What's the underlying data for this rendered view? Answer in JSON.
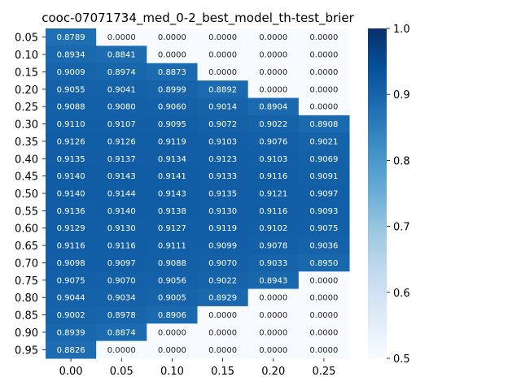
{
  "chart_data": {
    "type": "heatmap",
    "title": "cooc-07071734_med_0-2_best_model_th-test_brier",
    "xlabel": "",
    "ylabel": "",
    "x_categories": [
      "0.00",
      "0.05",
      "0.10",
      "0.15",
      "0.20",
      "0.25"
    ],
    "y_categories": [
      "0.05",
      "0.10",
      "0.15",
      "0.20",
      "0.25",
      "0.30",
      "0.35",
      "0.40",
      "0.45",
      "0.50",
      "0.55",
      "0.60",
      "0.65",
      "0.70",
      "0.75",
      "0.80",
      "0.85",
      "0.90",
      "0.95"
    ],
    "values": [
      [
        "0.8789",
        "0.0000",
        "0.0000",
        "0.0000",
        "0.0000",
        "0.0000"
      ],
      [
        "0.8934",
        "0.8841",
        "0.0000",
        "0.0000",
        "0.0000",
        "0.0000"
      ],
      [
        "0.9009",
        "0.8974",
        "0.8873",
        "0.0000",
        "0.0000",
        "0.0000"
      ],
      [
        "0.9055",
        "0.9041",
        "0.8999",
        "0.8892",
        "0.0000",
        "0.0000"
      ],
      [
        "0.9088",
        "0.9080",
        "0.9060",
        "0.9014",
        "0.8904",
        "0.0000"
      ],
      [
        "0.9110",
        "0.9107",
        "0.9095",
        "0.9072",
        "0.9022",
        "0.8908"
      ],
      [
        "0.9126",
        "0.9126",
        "0.9119",
        "0.9103",
        "0.9076",
        "0.9021"
      ],
      [
        "0.9135",
        "0.9137",
        "0.9134",
        "0.9123",
        "0.9103",
        "0.9069"
      ],
      [
        "0.9140",
        "0.9143",
        "0.9141",
        "0.9133",
        "0.9116",
        "0.9091"
      ],
      [
        "0.9140",
        "0.9144",
        "0.9143",
        "0.9135",
        "0.9121",
        "0.9097"
      ],
      [
        "0.9136",
        "0.9140",
        "0.9138",
        "0.9130",
        "0.9116",
        "0.9093"
      ],
      [
        "0.9129",
        "0.9130",
        "0.9127",
        "0.9119",
        "0.9102",
        "0.9075"
      ],
      [
        "0.9116",
        "0.9116",
        "0.9111",
        "0.9099",
        "0.9078",
        "0.9036"
      ],
      [
        "0.9098",
        "0.9097",
        "0.9088",
        "0.9070",
        "0.9033",
        "0.8950"
      ],
      [
        "0.9075",
        "0.9070",
        "0.9056",
        "0.9022",
        "0.8943",
        "0.0000"
      ],
      [
        "0.9044",
        "0.9034",
        "0.9005",
        "0.8929",
        "0.0000",
        "0.0000"
      ],
      [
        "0.9002",
        "0.8978",
        "0.8906",
        "0.0000",
        "0.0000",
        "0.0000"
      ],
      [
        "0.8939",
        "0.8874",
        "0.0000",
        "0.0000",
        "0.0000",
        "0.0000"
      ],
      [
        "0.8826",
        "0.0000",
        "0.0000",
        "0.0000",
        "0.0000",
        "0.0000"
      ]
    ],
    "colorbar": {
      "vmin": 0.5,
      "vmax": 1.0,
      "ticks": [
        "0.5",
        "0.6",
        "0.7",
        "0.8",
        "0.9",
        "1.0"
      ],
      "colormap": "Blues"
    },
    "grid": false,
    "legend": "none"
  }
}
